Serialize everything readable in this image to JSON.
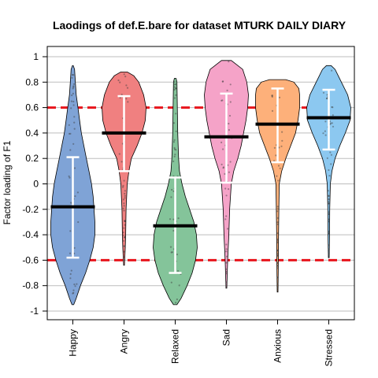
{
  "chart_data": {
    "type": "violin",
    "title": "Laodings of def.E.bare for dataset MTURK DAILY DIARY",
    "xlabel": "",
    "ylabel": "Factor loading of F1",
    "ylim": [
      -1.05,
      1.05
    ],
    "yticks": [
      "-1",
      "-0.8",
      "-0.6",
      "-0.4",
      "-0.2",
      "0",
      "0.2",
      "0.4",
      "0.6",
      "0.8",
      "1"
    ],
    "reference_lines": [
      0.6,
      -0.6
    ],
    "reference_line_color": "#e8141c",
    "grid": true,
    "categories": [
      "Happy",
      "Angry",
      "Relaxed",
      "Sad",
      "Anxious",
      "Stressed"
    ],
    "series": [
      {
        "category": "Happy",
        "color": "#7fa3d6",
        "min": -0.95,
        "max": 0.93,
        "mean": -0.18,
        "sd_low": -0.58,
        "sd_high": 0.21,
        "density": [
          [
            -0.95,
            1
          ],
          [
            -0.9,
            4
          ],
          [
            -0.8,
            9
          ],
          [
            -0.7,
            15
          ],
          [
            -0.6,
            20
          ],
          [
            -0.5,
            24
          ],
          [
            -0.4,
            26
          ],
          [
            -0.3,
            26
          ],
          [
            -0.2,
            25
          ],
          [
            -0.1,
            24
          ],
          [
            0,
            22
          ],
          [
            0.1,
            19
          ],
          [
            0.2,
            16
          ],
          [
            0.3,
            13
          ],
          [
            0.4,
            10
          ],
          [
            0.5,
            8
          ],
          [
            0.6,
            6
          ],
          [
            0.7,
            4
          ],
          [
            0.8,
            3
          ],
          [
            0.9,
            2
          ],
          [
            0.93,
            0.5
          ]
        ]
      },
      {
        "category": "Angry",
        "color": "#f08080",
        "min": -0.64,
        "max": 0.88,
        "mean": 0.4,
        "sd_low": 0.1,
        "sd_high": 0.69,
        "density": [
          [
            -0.64,
            0.5
          ],
          [
            -0.5,
            1.5
          ],
          [
            -0.4,
            2
          ],
          [
            -0.2,
            2.5
          ],
          [
            0,
            4
          ],
          [
            0.1,
            6
          ],
          [
            0.2,
            9
          ],
          [
            0.3,
            16
          ],
          [
            0.4,
            22
          ],
          [
            0.5,
            26
          ],
          [
            0.6,
            27
          ],
          [
            0.7,
            24
          ],
          [
            0.8,
            18
          ],
          [
            0.85,
            12
          ],
          [
            0.88,
            4
          ]
        ]
      },
      {
        "category": "Relaxed",
        "color": "#84c49a",
        "min": -0.95,
        "max": 0.83,
        "mean": -0.33,
        "sd_low": -0.7,
        "sd_high": 0.05,
        "density": [
          [
            -0.95,
            2
          ],
          [
            -0.9,
            7
          ],
          [
            -0.8,
            14
          ],
          [
            -0.7,
            20
          ],
          [
            -0.6,
            24
          ],
          [
            -0.5,
            26
          ],
          [
            -0.4,
            25
          ],
          [
            -0.3,
            22
          ],
          [
            -0.2,
            17
          ],
          [
            -0.1,
            12
          ],
          [
            0,
            8
          ],
          [
            0.1,
            5
          ],
          [
            0.2,
            4
          ],
          [
            0.4,
            3
          ],
          [
            0.6,
            2.5
          ],
          [
            0.8,
            2
          ],
          [
            0.83,
            1
          ]
        ]
      },
      {
        "category": "Sad",
        "color": "#f5a3c8",
        "min": -0.82,
        "max": 0.97,
        "mean": 0.37,
        "sd_low": 0.01,
        "sd_high": 0.71,
        "density": [
          [
            -0.82,
            0.5
          ],
          [
            -0.6,
            1.5
          ],
          [
            -0.4,
            3
          ],
          [
            -0.2,
            4
          ],
          [
            0,
            6
          ],
          [
            0.1,
            9
          ],
          [
            0.2,
            14
          ],
          [
            0.3,
            18
          ],
          [
            0.4,
            21
          ],
          [
            0.5,
            24
          ],
          [
            0.6,
            26
          ],
          [
            0.7,
            27
          ],
          [
            0.8,
            25
          ],
          [
            0.9,
            20
          ],
          [
            0.97,
            6
          ]
        ]
      },
      {
        "category": "Anxious",
        "color": "#fdb07a",
        "min": -0.85,
        "max": 0.82,
        "mean": 0.47,
        "sd_low": 0.17,
        "sd_high": 0.75,
        "density": [
          [
            -0.85,
            0.5
          ],
          [
            -0.6,
            1
          ],
          [
            -0.4,
            1.2
          ],
          [
            -0.2,
            1.5
          ],
          [
            0,
            2
          ],
          [
            0.1,
            5
          ],
          [
            0.2,
            10
          ],
          [
            0.3,
            16
          ],
          [
            0.4,
            22
          ],
          [
            0.5,
            25
          ],
          [
            0.6,
            27
          ],
          [
            0.7,
            27
          ],
          [
            0.75,
            26
          ],
          [
            0.8,
            20
          ],
          [
            0.82,
            10
          ]
        ]
      },
      {
        "category": "Stressed",
        "color": "#8cc8f0",
        "min": -0.58,
        "max": 0.93,
        "mean": 0.52,
        "sd_low": 0.27,
        "sd_high": 0.74,
        "density": [
          [
            -0.58,
            0.5
          ],
          [
            -0.4,
            1
          ],
          [
            -0.2,
            1.2
          ],
          [
            0,
            2
          ],
          [
            0.1,
            4
          ],
          [
            0.2,
            8
          ],
          [
            0.3,
            14
          ],
          [
            0.4,
            21
          ],
          [
            0.5,
            27
          ],
          [
            0.6,
            28
          ],
          [
            0.7,
            24
          ],
          [
            0.8,
            16
          ],
          [
            0.9,
            8
          ],
          [
            0.93,
            3
          ]
        ]
      }
    ]
  }
}
